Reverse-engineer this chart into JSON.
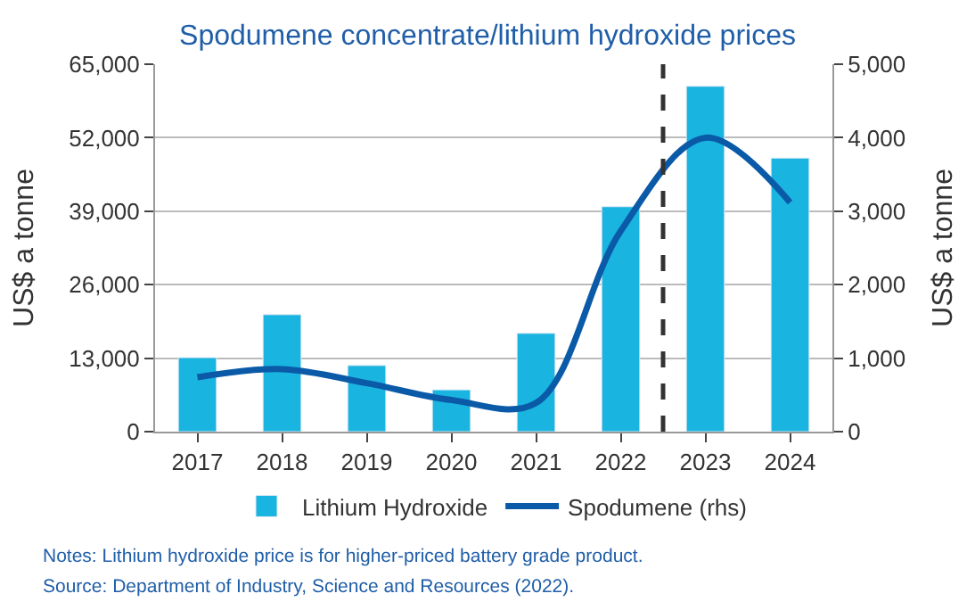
{
  "chart_data": {
    "type": "bar",
    "title": "Spodumene concentrate/lithium hydroxide prices",
    "ylabel": "US$ a tonne",
    "y2label": "US$ a tonne",
    "x": [
      2017,
      2018,
      2019,
      2020,
      2021,
      2022,
      2023,
      2024
    ],
    "xlim": [
      2016.5,
      2024.5
    ],
    "xticks": [
      2017,
      2018,
      2019,
      2020,
      2021,
      2022,
      2023,
      2024
    ],
    "ref_lines": [
      {
        "axis": "x",
        "value": 2022.5,
        "color": "#333333",
        "line_style": "dashed"
      }
    ],
    "series": [
      {
        "name": "Lithium Hydroxide",
        "color": "#1ab4e0",
        "values": [
          13100,
          20700,
          11700,
          7400,
          17400,
          39800,
          61100,
          48400
        ]
      },
      {
        "name": "Spodumene (rhs)",
        "type": "line",
        "axis": "y2",
        "color": "#0a5aa8",
        "values": [
          740,
          850,
          660,
          430,
          390,
          2730,
          4000,
          3120
        ]
      }
    ],
    "ylim": [
      0,
      65000
    ],
    "yticks": [
      0,
      {
        "value": 13000,
        "label": "13,000"
      },
      {
        "value": 26000,
        "label": "26,000"
      },
      {
        "value": 39000,
        "label": "39,000"
      },
      {
        "value": 52000,
        "label": "52,000"
      },
      {
        "value": 65000,
        "label": "65,000"
      }
    ],
    "y2lim": [
      0,
      5000
    ],
    "y2ticks": [
      0,
      {
        "value": 1000,
        "label": "1,000"
      },
      {
        "value": 2000,
        "label": "2,000"
      },
      {
        "value": 3000,
        "label": "3,000"
      },
      {
        "value": 4000,
        "label": "4,000"
      },
      {
        "value": 5000,
        "label": "5,000"
      }
    ],
    "grid": "y",
    "legend": "bottom",
    "annotations": [
      "Notes: Lithium hydroxide price is for higher-priced battery grade product.",
      "Source: Department of Industry, Science and Resources (2022)."
    ]
  }
}
